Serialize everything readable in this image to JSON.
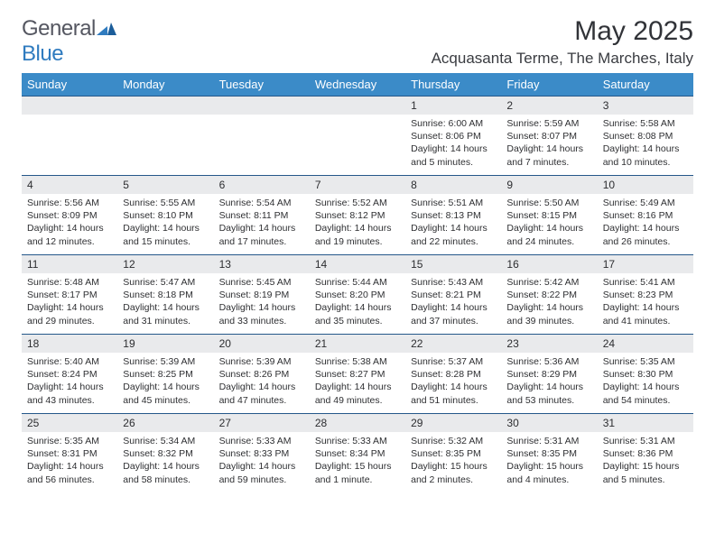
{
  "brand": {
    "name_a": "General",
    "name_b": "Blue"
  },
  "title": "May 2025",
  "location": "Acquasanta Terme, The Marches, Italy",
  "colors": {
    "header_bg": "#3b8bc8",
    "daynum_bg": "#e9eaec",
    "row_divider": "#25588a",
    "text": "#2e2f32",
    "title": "#313338",
    "brand_gray": "#555761",
    "brand_blue": "#2f7bbf"
  },
  "weekdays": [
    "Sunday",
    "Monday",
    "Tuesday",
    "Wednesday",
    "Thursday",
    "Friday",
    "Saturday"
  ],
  "weeks": [
    {
      "nums": [
        "",
        "",
        "",
        "",
        "1",
        "2",
        "3"
      ],
      "cells": [
        null,
        null,
        null,
        null,
        {
          "sunrise": "6:00 AM",
          "sunset": "8:06 PM",
          "daylight": "14 hours and 5 minutes."
        },
        {
          "sunrise": "5:59 AM",
          "sunset": "8:07 PM",
          "daylight": "14 hours and 7 minutes."
        },
        {
          "sunrise": "5:58 AM",
          "sunset": "8:08 PM",
          "daylight": "14 hours and 10 minutes."
        }
      ]
    },
    {
      "nums": [
        "4",
        "5",
        "6",
        "7",
        "8",
        "9",
        "10"
      ],
      "cells": [
        {
          "sunrise": "5:56 AM",
          "sunset": "8:09 PM",
          "daylight": "14 hours and 12 minutes."
        },
        {
          "sunrise": "5:55 AM",
          "sunset": "8:10 PM",
          "daylight": "14 hours and 15 minutes."
        },
        {
          "sunrise": "5:54 AM",
          "sunset": "8:11 PM",
          "daylight": "14 hours and 17 minutes."
        },
        {
          "sunrise": "5:52 AM",
          "sunset": "8:12 PM",
          "daylight": "14 hours and 19 minutes."
        },
        {
          "sunrise": "5:51 AM",
          "sunset": "8:13 PM",
          "daylight": "14 hours and 22 minutes."
        },
        {
          "sunrise": "5:50 AM",
          "sunset": "8:15 PM",
          "daylight": "14 hours and 24 minutes."
        },
        {
          "sunrise": "5:49 AM",
          "sunset": "8:16 PM",
          "daylight": "14 hours and 26 minutes."
        }
      ]
    },
    {
      "nums": [
        "11",
        "12",
        "13",
        "14",
        "15",
        "16",
        "17"
      ],
      "cells": [
        {
          "sunrise": "5:48 AM",
          "sunset": "8:17 PM",
          "daylight": "14 hours and 29 minutes."
        },
        {
          "sunrise": "5:47 AM",
          "sunset": "8:18 PM",
          "daylight": "14 hours and 31 minutes."
        },
        {
          "sunrise": "5:45 AM",
          "sunset": "8:19 PM",
          "daylight": "14 hours and 33 minutes."
        },
        {
          "sunrise": "5:44 AM",
          "sunset": "8:20 PM",
          "daylight": "14 hours and 35 minutes."
        },
        {
          "sunrise": "5:43 AM",
          "sunset": "8:21 PM",
          "daylight": "14 hours and 37 minutes."
        },
        {
          "sunrise": "5:42 AM",
          "sunset": "8:22 PM",
          "daylight": "14 hours and 39 minutes."
        },
        {
          "sunrise": "5:41 AM",
          "sunset": "8:23 PM",
          "daylight": "14 hours and 41 minutes."
        }
      ]
    },
    {
      "nums": [
        "18",
        "19",
        "20",
        "21",
        "22",
        "23",
        "24"
      ],
      "cells": [
        {
          "sunrise": "5:40 AM",
          "sunset": "8:24 PM",
          "daylight": "14 hours and 43 minutes."
        },
        {
          "sunrise": "5:39 AM",
          "sunset": "8:25 PM",
          "daylight": "14 hours and 45 minutes."
        },
        {
          "sunrise": "5:39 AM",
          "sunset": "8:26 PM",
          "daylight": "14 hours and 47 minutes."
        },
        {
          "sunrise": "5:38 AM",
          "sunset": "8:27 PM",
          "daylight": "14 hours and 49 minutes."
        },
        {
          "sunrise": "5:37 AM",
          "sunset": "8:28 PM",
          "daylight": "14 hours and 51 minutes."
        },
        {
          "sunrise": "5:36 AM",
          "sunset": "8:29 PM",
          "daylight": "14 hours and 53 minutes."
        },
        {
          "sunrise": "5:35 AM",
          "sunset": "8:30 PM",
          "daylight": "14 hours and 54 minutes."
        }
      ]
    },
    {
      "nums": [
        "25",
        "26",
        "27",
        "28",
        "29",
        "30",
        "31"
      ],
      "cells": [
        {
          "sunrise": "5:35 AM",
          "sunset": "8:31 PM",
          "daylight": "14 hours and 56 minutes."
        },
        {
          "sunrise": "5:34 AM",
          "sunset": "8:32 PM",
          "daylight": "14 hours and 58 minutes."
        },
        {
          "sunrise": "5:33 AM",
          "sunset": "8:33 PM",
          "daylight": "14 hours and 59 minutes."
        },
        {
          "sunrise": "5:33 AM",
          "sunset": "8:34 PM",
          "daylight": "15 hours and 1 minute."
        },
        {
          "sunrise": "5:32 AM",
          "sunset": "8:35 PM",
          "daylight": "15 hours and 2 minutes."
        },
        {
          "sunrise": "5:31 AM",
          "sunset": "8:35 PM",
          "daylight": "15 hours and 4 minutes."
        },
        {
          "sunrise": "5:31 AM",
          "sunset": "8:36 PM",
          "daylight": "15 hours and 5 minutes."
        }
      ]
    }
  ],
  "field_labels": {
    "sunrise": "Sunrise: ",
    "sunset": "Sunset: ",
    "daylight": "Daylight: "
  }
}
